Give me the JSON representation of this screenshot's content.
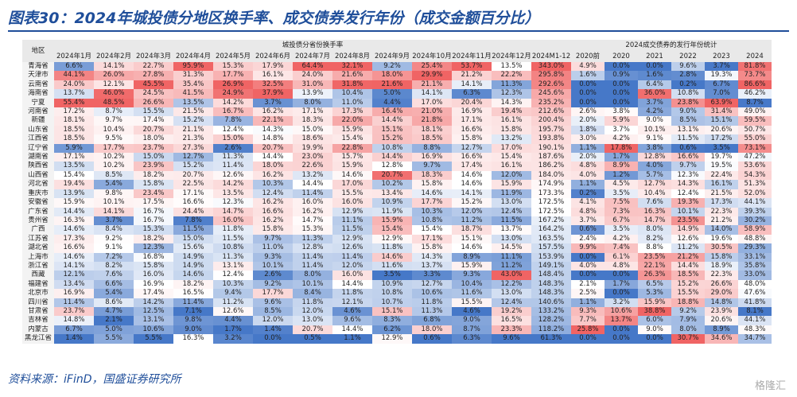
{
  "title": "图表30：2024年城投债分地区换手率、成交债券发行年份（成交金额百分比）",
  "source": "资料来源：iFinD，国盛证券研究所",
  "watermark": "格隆汇",
  "table": {
    "group_headers": [
      "城投债分省份换手率",
      "2024成交债券的发行年份统计"
    ],
    "columns": [
      "地区",
      "2024年1月",
      "2024年2月",
      "2024年3月",
      "2024年4月",
      "2024年5月",
      "2024年6月",
      "2024年7月",
      "2024年8月",
      "2024年9月",
      "2024年10月",
      "2024年11月",
      "2024年12月",
      "2024M1-12",
      "2020前",
      "2020",
      "2021",
      "2022",
      "2023",
      "2024"
    ],
    "rows": [
      [
        "青海省",
        "6.6%",
        "14.1%",
        "22.7%",
        "95.9%",
        "15.3%",
        "17.9%",
        "64.4%",
        "32.1%",
        "9.2%",
        "25.4%",
        "53.7%",
        "13.5%",
        "343.0%",
        "4.9%",
        "0.0%",
        "0.0%",
        "9.6%",
        "3.7%",
        "81.8%"
      ],
      [
        "天津市",
        "44.1%",
        "26.0%",
        "27.8%",
        "31.3%",
        "17.7%",
        "16.1%",
        "24.0%",
        "21.6%",
        "18.0%",
        "29.9%",
        "21.2%",
        "22.2%",
        "295.8%",
        "1.6%",
        "0.9%",
        "1.6%",
        "2.8%",
        "19.3%",
        "73.7%"
      ],
      [
        "云南省",
        "24.0%",
        "12.1%",
        "45.5%",
        "35.4%",
        "26.9%",
        "32.5%",
        "31.0%",
        "31.8%",
        "21.6%",
        "21.1%",
        "14.1%",
        "11.3%",
        "292.6%",
        "0.0%",
        "0.0%",
        "6.4%",
        "0.2%",
        "6.7%",
        "86.6%"
      ],
      [
        "海南省",
        "13.7%",
        "46.0%",
        "24.5%",
        "41.5%",
        "24.9%",
        "37.9%",
        "13.9%",
        "10.4%",
        "5.0%",
        "14.1%",
        "6.3%",
        "12.3%",
        "245.6%",
        "0.0%",
        "0.0%",
        "36.0%",
        "10.8%",
        "7.0%",
        "46.2%"
      ],
      [
        "宁夏",
        "55.4%",
        "48.5%",
        "26.6%",
        "13.5%",
        "14.2%",
        "3.7%",
        "8.0%",
        "11.0%",
        "4.4%",
        "17.0%",
        "20.4%",
        "14.3%",
        "235.2%",
        "0.0%",
        "0.0%",
        "3.7%",
        "23.8%",
        "63.9%",
        "8.7%"
      ],
      [
        "河南省",
        "17.2%",
        "8.7%",
        "15.5%",
        "21.5%",
        "16.7%",
        "16.2%",
        "17.1%",
        "17.3%",
        "16.4%",
        "21.0%",
        "16.9%",
        "19.4%",
        "212.6%",
        "2.6%",
        "3.8%",
        "4.2%",
        "9.0%",
        "31.4%",
        "49.0%"
      ],
      [
        "新疆",
        "18.1%",
        "9.7%",
        "17.4%",
        "15.2%",
        "7.8%",
        "22.1%",
        "18.3%",
        "22.0%",
        "14.4%",
        "21.8%",
        "17.1%",
        "16.1%",
        "200.4%",
        "2.0%",
        "5.9%",
        "9.0%",
        "8.5%",
        "15.1%",
        "59.5%"
      ],
      [
        "山东省",
        "18.5%",
        "10.4%",
        "20.7%",
        "21.1%",
        "12.4%",
        "14.3%",
        "15.0%",
        "15.9%",
        "15.1%",
        "18.1%",
        "16.6%",
        "15.8%",
        "195.7%",
        "1.8%",
        "3.7%",
        "10.1%",
        "13.1%",
        "20.6%",
        "50.7%"
      ],
      [
        "江西省",
        "18.5%",
        "9.5%",
        "18.0%",
        "21.3%",
        "15.0%",
        "14.8%",
        "18.6%",
        "15.4%",
        "15.2%",
        "18.5%",
        "15.8%",
        "13.2%",
        "193.8%",
        "3.0%",
        "4.2%",
        "9.1%",
        "11.5%",
        "17.2%",
        "55.0%"
      ],
      [
        "辽宁省",
        "5.9%",
        "17.7%",
        "23.7%",
        "27.3%",
        "2.6%",
        "20.7%",
        "19.9%",
        "22.8%",
        "10.8%",
        "8.8%",
        "12.7%",
        "17.0%",
        "190.1%",
        "1.1%",
        "17.8%",
        "3.8%",
        "0.6%",
        "3.5%",
        "73.1%"
      ],
      [
        "湖南省",
        "17.1%",
        "10.2%",
        "15.0%",
        "12.7%",
        "11.3%",
        "14.4%",
        "23.0%",
        "15.7%",
        "14.4%",
        "16.9%",
        "16.6%",
        "15.4%",
        "187.6%",
        "2.0%",
        "1.7%",
        "12.8%",
        "16.6%",
        "19.7%",
        "47.2%"
      ],
      [
        "陕西省",
        "13.5%",
        "10.2%",
        "23.9%",
        "15.2%",
        "11.4%",
        "18.0%",
        "22.6%",
        "15.9%",
        "12.8%",
        "9.7%",
        "17.4%",
        "16.1%",
        "186.2%",
        "4.8%",
        "8.9%",
        "4.0%",
        "9.7%",
        "19.5%",
        "53.6%"
      ],
      [
        "山西省",
        "15.4%",
        "8.5%",
        "18.2%",
        "20.7%",
        "12.6%",
        "16.2%",
        "13.2%",
        "14.6%",
        "20.7%",
        "18.3%",
        "14.6%",
        "12.0%",
        "184.0%",
        "4.0%",
        "1.2%",
        "5.7%",
        "12.3%",
        "22.4%",
        "54.3%"
      ],
      [
        "河北省",
        "19.4%",
        "5.4%",
        "15.8%",
        "22.5%",
        "14.2%",
        "10.3%",
        "14.4%",
        "17.0%",
        "10.2%",
        "15.8%",
        "14.6%",
        "15.9%",
        "174.9%",
        "1.1%",
        "4.5%",
        "12.7%",
        "14.3%",
        "16.1%",
        "51.3%"
      ],
      [
        "重庆市",
        "13.9%",
        "9.8%",
        "23.4%",
        "17.1%",
        "13.5%",
        "12.4%",
        "11.4%",
        "15.5%",
        "13.4%",
        "14.6%",
        "14.1%",
        "11.9%",
        "173.3%",
        "0.2%",
        "3.5%",
        "10.4%",
        "12.4%",
        "21.5%",
        "52.0%"
      ],
      [
        "安徽省",
        "15.9%",
        "10.1%",
        "17.5%",
        "16.6%",
        "12.3%",
        "16.2%",
        "16.0%",
        "16.0%",
        "10.9%",
        "17.7%",
        "15.2%",
        "13.0%",
        "172.5%",
        "4.1%",
        "7.5%",
        "7.6%",
        "19.3%",
        "17.3%",
        "44.1%"
      ],
      [
        "广东省",
        "14.4%",
        "14.1%",
        "16.7%",
        "24.4%",
        "14.7%",
        "16.6%",
        "16.2%",
        "12.9%",
        "11.9%",
        "10.3%",
        "12.0%",
        "12.4%",
        "172.5%",
        "4.8%",
        "7.3%",
        "16.3%",
        "10.1%",
        "22.3%",
        "39.3%"
      ],
      [
        "贵州省",
        "16.3%",
        "3.7%",
        "16.7%",
        "7.8%",
        "16.0%",
        "16.2%",
        "14.7%",
        "11.1%",
        "15.9%",
        "10.8%",
        "11.2%",
        "11.5%",
        "167.2%",
        "3.7%",
        "6.7%",
        "14.7%",
        "23.5%",
        "21.2%",
        "30.2%"
      ],
      [
        "广西",
        "14.6%",
        "8.4%",
        "15.3%",
        "11.5%",
        "11.8%",
        "15.8%",
        "15.3%",
        "11.5%",
        "15.4%",
        "15.4%",
        "18.7%",
        "13.7%",
        "164.2%",
        "0.6%",
        "3.5%",
        "8.0%",
        "14.9%",
        "14.0%",
        "58.9%"
      ],
      [
        "江苏省",
        "17.3%",
        "9.2%",
        "18.2%",
        "15.0%",
        "11.5%",
        "9.7%",
        "11.3%",
        "12.9%",
        "12.9%",
        "17.1%",
        "15.1%",
        "13.0%",
        "163.5%",
        "2.4%",
        "4.2%",
        "8.2%",
        "12.6%",
        "19.6%",
        "48.8%"
      ],
      [
        "湖北省",
        "16.6%",
        "9.1%",
        "12.3%",
        "15.6%",
        "10.8%",
        "11.0%",
        "12.8%",
        "12.6%",
        "11.8%",
        "15.8%",
        "14.6%",
        "14.5%",
        "157.5%",
        "9.9%",
        "7.4%",
        "8.8%",
        "11.2%",
        "30.5%",
        "29.3%"
      ],
      [
        "上海市",
        "14.6%",
        "7.2%",
        "16.8%",
        "14.9%",
        "11.3%",
        "9.3%",
        "11.4%",
        "11.4%",
        "14.6%",
        "14.3%",
        "8.9%",
        "11.1%",
        "153.9%",
        "0.0%",
        "6.1%",
        "23.5%",
        "21.2%",
        "15.8%",
        "33.1%"
      ],
      [
        "浙江省",
        "14.1%",
        "8.2%",
        "15.8%",
        "14.9%",
        "13.1%",
        "10.1%",
        "11.4%",
        "12.0%",
        "11.6%",
        "13.7%",
        "15.9%",
        "11.2%",
        "149.1%",
        "4.0%",
        "4.8%",
        "22.1%",
        "14.4%",
        "18.9%",
        "35.8%"
      ],
      [
        "西藏",
        "12.1%",
        "7.6%",
        "16.0%",
        "14.6%",
        "12.4%",
        "2.6%",
        "8.0%",
        "16.0%",
        "3.5%",
        "3.3%",
        "9.3%",
        "43.0%",
        "148.4%",
        "0.0%",
        "0.0%",
        "26.3%",
        "18.5%",
        "22.3%",
        "33.0%"
      ],
      [
        "福建省",
        "13.4%",
        "6.6%",
        "16.9%",
        "18.2%",
        "10.3%",
        "9.2%",
        "10.1%",
        "14.4%",
        "10.9%",
        "12.7%",
        "10.4%",
        "12.2%",
        "148.3%",
        "2.1%",
        "1.7%",
        "6.5%",
        "15.2%",
        "26.6%",
        "48.0%"
      ],
      [
        "北京市",
        "16.9%",
        "5.4%",
        "17.4%",
        "16.5%",
        "9.4%",
        "17.7%",
        "8.4%",
        "11.8%",
        "10.8%",
        "10.6%",
        "11.6%",
        "13.0%",
        "148.3%",
        "2.5%",
        "0.0%",
        "5.3%",
        "15.5%",
        "29.0%",
        "47.6%"
      ],
      [
        "四川省",
        "11.4%",
        "8.6%",
        "14.2%",
        "11.4%",
        "11.2%",
        "9.6%",
        "11.8%",
        "12.1%",
        "10.7%",
        "11.8%",
        "15.5%",
        "12.4%",
        "140.6%",
        "1.1%",
        "3.2%",
        "15.9%",
        "18.8%",
        "14.8%",
        "41.8%"
      ],
      [
        "甘肃省",
        "23.7%",
        "4.7%",
        "12.5%",
        "7.1%",
        "12.6%",
        "8.5%",
        "12.0%",
        "4.6%",
        "15.1%",
        "11.3%",
        "4.6%",
        "19.2%",
        "133.2%",
        "9.3%",
        "10.6%",
        "38.8%",
        "9.2%",
        "23.9%",
        "8.1%"
      ],
      [
        "吉林省",
        "14.8%",
        "2.1%",
        "13.1%",
        "9.8%",
        "4.4%",
        "12.0%",
        "13.0%",
        "9.6%",
        "8.3%",
        "6.8%",
        "9.0%",
        "16.5%",
        "128.2%",
        "7.7%",
        "13.7%",
        "6.0%",
        "7.9%",
        "20.6%",
        "44.1%"
      ],
      [
        "内蒙古",
        "6.7%",
        "5.0%",
        "10.6%",
        "9.0%",
        "1.7%",
        "1.4%",
        "20.7%",
        "14.4%",
        "6.2%",
        "18.0%",
        "8.7%",
        "23.3%",
        "118.2%",
        "25.8%",
        "0.0%",
        "9.0%",
        "8.0%",
        "8.9%",
        "48.3%"
      ],
      [
        "黑龙江省",
        "1.4%",
        "5.5%",
        "5.5%",
        "16.3%",
        "3.2%",
        "0.0%",
        "0.5%",
        "1.1%",
        "12.9%",
        "0.6%",
        "6.3%",
        "9.6%",
        "61.3%",
        "0.0%",
        "0.0%",
        "0.0%",
        "30.7%",
        "34.6%",
        "34.7%"
      ]
    ]
  }
}
